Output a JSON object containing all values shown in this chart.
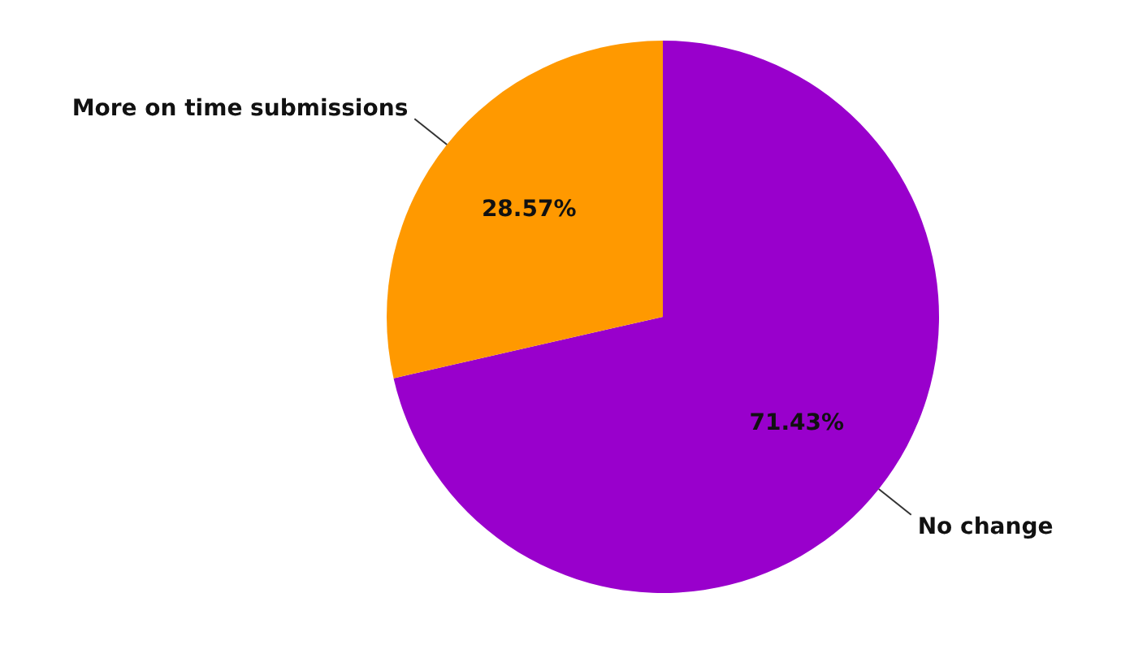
{
  "chart_data": {
    "type": "pie",
    "categories": [
      "No change",
      "More on time submissions"
    ],
    "values": [
      71.43,
      28.57
    ],
    "colors": [
      "#9900cc",
      "#ff9900"
    ],
    "value_labels": [
      "71.43%",
      "28.57%"
    ],
    "legend": false
  }
}
